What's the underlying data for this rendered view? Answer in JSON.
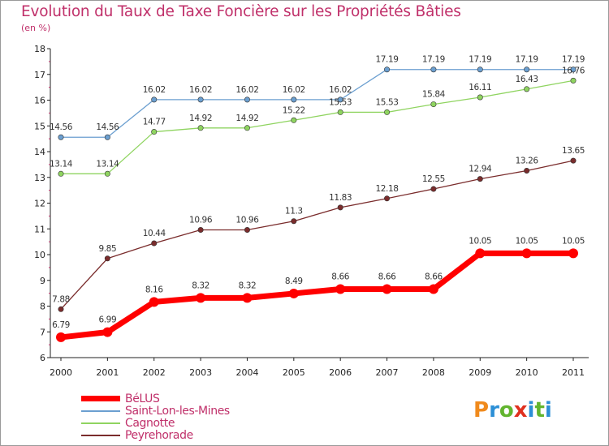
{
  "title": "Evolution du Taux de Taxe Foncière sur les Propriétés Bâties",
  "subtitle": "(en %)",
  "logo": {
    "text": "Proxiti",
    "colors": [
      "#f08a1c",
      "#2c8fd6",
      "#62b52f",
      "#e0301e",
      "#2c8fd6",
      "#62b52f",
      "#2c8fd6"
    ]
  },
  "chart_data": {
    "type": "line",
    "title": "Evolution du Taux de Taxe Foncière sur les Propriétés Bâties",
    "ylabel": "(en %)",
    "xlabel": "",
    "categories": [
      "2000",
      "2001",
      "2002",
      "2003",
      "2004",
      "2005",
      "2006",
      "2007",
      "2008",
      "2009",
      "2010",
      "2011"
    ],
    "ylim": [
      6,
      18
    ],
    "yticks": [
      "6",
      "7",
      "8",
      "9",
      "10",
      "11",
      "12",
      "13",
      "14",
      "15",
      "16",
      "17",
      "18"
    ],
    "grid": false,
    "legend": "bottom-left",
    "series": [
      {
        "name": "BéLUS",
        "color": "#ff0000",
        "values": [
          6.79,
          6.99,
          8.16,
          8.32,
          8.32,
          8.49,
          8.66,
          8.66,
          8.66,
          10.05,
          10.05,
          10.05
        ],
        "labels": [
          "6.79",
          "6.99",
          "8.16",
          "8.32",
          "8.32",
          "8.49",
          "8.66",
          "8.66",
          "8.66",
          "10.05",
          "10.05",
          "10.05"
        ]
      },
      {
        "name": "Saint-Lon-les-Mines",
        "color": "#6b9fd0",
        "values": [
          14.56,
          14.56,
          16.02,
          16.02,
          16.02,
          16.02,
          16.02,
          17.19,
          17.19,
          17.19,
          17.19,
          17.19
        ],
        "labels": [
          "14.56",
          "14.56",
          "16.02",
          "16.02",
          "16.02",
          "16.02",
          "16.02",
          "17.19",
          "17.19",
          "17.19",
          "17.19",
          "17.19"
        ]
      },
      {
        "name": "Cagnotte",
        "color": "#8fd460",
        "values": [
          13.14,
          13.14,
          14.77,
          14.92,
          14.92,
          15.22,
          15.53,
          15.53,
          15.84,
          16.11,
          16.43,
          16.76
        ],
        "labels": [
          "13.14",
          "13.14",
          "14.77",
          "14.92",
          "14.92",
          "15.22",
          "15.53",
          "15.53",
          "15.84",
          "16.11",
          "16.43",
          "16.76"
        ]
      },
      {
        "name": "Peyrehorade",
        "color": "#7a2c2c",
        "values": [
          7.88,
          9.85,
          10.44,
          10.96,
          10.96,
          11.3,
          11.83,
          12.18,
          12.55,
          12.94,
          13.26,
          13.65
        ],
        "labels": [
          "7.88",
          "9.85",
          "10.44",
          "10.96",
          "10.96",
          "11.3",
          "11.83",
          "12.18",
          "12.55",
          "12.94",
          "13.26",
          "13.65"
        ]
      }
    ]
  }
}
